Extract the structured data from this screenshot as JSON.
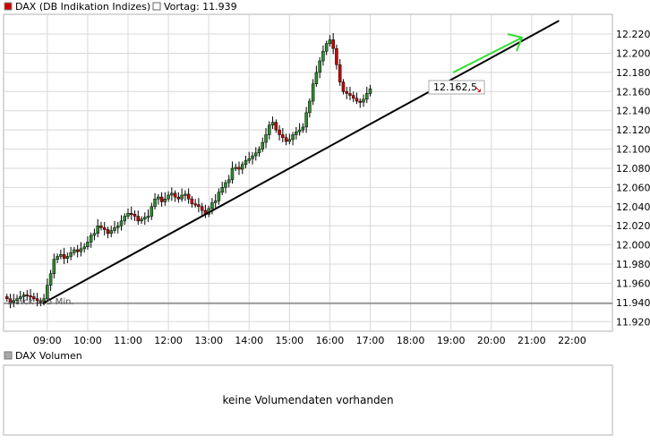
{
  "legend": {
    "series_name": "DAX (DB Indikation Indizes)",
    "series_color": "#cc0000",
    "prev_close_label": "Vortag: 11.939",
    "prev_close_color": "#ffffff"
  },
  "volume_panel": {
    "title": "DAX Volumen",
    "message": "keine Volumendaten vorhanden"
  },
  "tick_note": "1 Tick = 5 Min.",
  "price_tag": "12.162,5",
  "chart_data": {
    "type": "candlestick",
    "title": "",
    "xlabel": "",
    "ylabel": "",
    "ylim": [
      11910,
      12235
    ],
    "yticks": [
      11920,
      11940,
      11960,
      11980,
      12000,
      12020,
      12040,
      12060,
      12080,
      12100,
      12120,
      12140,
      12160,
      12180,
      12200,
      12220
    ],
    "ytick_labels": [
      "11.920",
      "11.940",
      "11.960",
      "11.980",
      "12.000",
      "12.020",
      "12.040",
      "12.060",
      "12.080",
      "12.100",
      "12.120",
      "12.140",
      "12.160",
      "12.180",
      "12.200",
      "12.220"
    ],
    "xlim": [
      "07:55",
      "23:00"
    ],
    "xticks": [
      "09:00",
      "10:00",
      "11:00",
      "12:00",
      "13:00",
      "14:00",
      "15:00",
      "16:00",
      "17:00",
      "18:00",
      "19:00",
      "20:00",
      "21:00",
      "22:00"
    ],
    "grid": true,
    "previous_close": 11939,
    "up_color": "#2e8b2e",
    "down_color": "#cc0000",
    "series": [
      {
        "name": "DAX (DB Indikation Indizes)",
        "close": [
          11944,
          11940,
          11942,
          11944,
          11946,
          11948,
          11947,
          11946,
          11944,
          11942,
          11941,
          11944,
          11958,
          11970,
          11985,
          11988,
          11990,
          11986,
          11988,
          11992,
          11995,
          11993,
          11996,
          11998,
          12003,
          12010,
          12012,
          12020,
          12018,
          12016,
          12012,
          12015,
          12018,
          12020,
          12025,
          12030,
          12033,
          12032,
          12030,
          12025,
          12027,
          12029,
          12030,
          12040,
          12048,
          12050,
          12045,
          12048,
          12052,
          12054,
          12050,
          12048,
          12052,
          12053,
          12048,
          12043,
          12042,
          12040,
          12036,
          12032,
          12038,
          12044,
          12046,
          12055,
          12060,
          12065,
          12068,
          12080,
          12081,
          12079,
          12084,
          12088,
          12090,
          12093,
          12096,
          12100,
          12107,
          12115,
          12125,
          12128,
          12120,
          12115,
          12112,
          12108,
          12110,
          12115,
          12118,
          12120,
          12123,
          12138,
          12150,
          12168,
          12180,
          12192,
          12202,
          12210,
          12214,
          12205,
          12188,
          12170,
          12160,
          12158,
          12156,
          12153,
          12150,
          12149,
          12152,
          12158,
          12163
        ]
      }
    ],
    "trendline": {
      "from": {
        "time": "09:00",
        "value": 11939
      },
      "to": {
        "time": "21:30",
        "value": 12234
      }
    },
    "last_price": 12162.5
  }
}
